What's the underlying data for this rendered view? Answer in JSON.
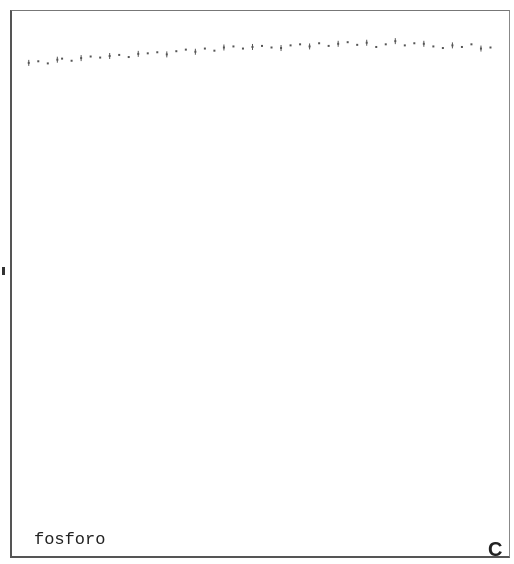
{
  "panel": {
    "name": "fosforo",
    "letter": "C"
  },
  "colors": {
    "marker": "#555555",
    "axis": "#555555"
  },
  "chart_data": {
    "type": "scatter",
    "title": "",
    "xlabel": "",
    "ylabel": "",
    "grid": false,
    "legend": "none",
    "xlim": [
      0,
      100
    ],
    "ylim": [
      0,
      100
    ],
    "series": [
      {
        "x": [
          1,
          3,
          5,
          7,
          8,
          10,
          12,
          14,
          16,
          18,
          20,
          22,
          24,
          26,
          28,
          30,
          32,
          34,
          36,
          38,
          40,
          42,
          44,
          46,
          48,
          50,
          52,
          54,
          56,
          58,
          60,
          62,
          64,
          66,
          68,
          70,
          72,
          74,
          76,
          78,
          80,
          82,
          84,
          86,
          88,
          90,
          92,
          94,
          96,
          98
        ],
        "y": [
          92.1,
          92.4,
          92.0,
          92.7,
          92.9,
          92.5,
          93.0,
          93.3,
          93.1,
          93.4,
          93.6,
          93.2,
          93.8,
          93.9,
          94.1,
          93.7,
          94.3,
          94.6,
          94.2,
          94.8,
          94.4,
          95.0,
          95.2,
          94.8,
          95.1,
          95.3,
          95.0,
          94.9,
          95.4,
          95.6,
          95.2,
          95.8,
          95.3,
          95.7,
          96.0,
          95.5,
          95.9,
          95.1,
          95.6,
          96.2,
          95.4,
          95.8,
          95.7,
          95.2,
          94.9,
          95.4,
          95.1,
          95.6,
          94.8,
          95.0
        ]
      }
    ]
  }
}
